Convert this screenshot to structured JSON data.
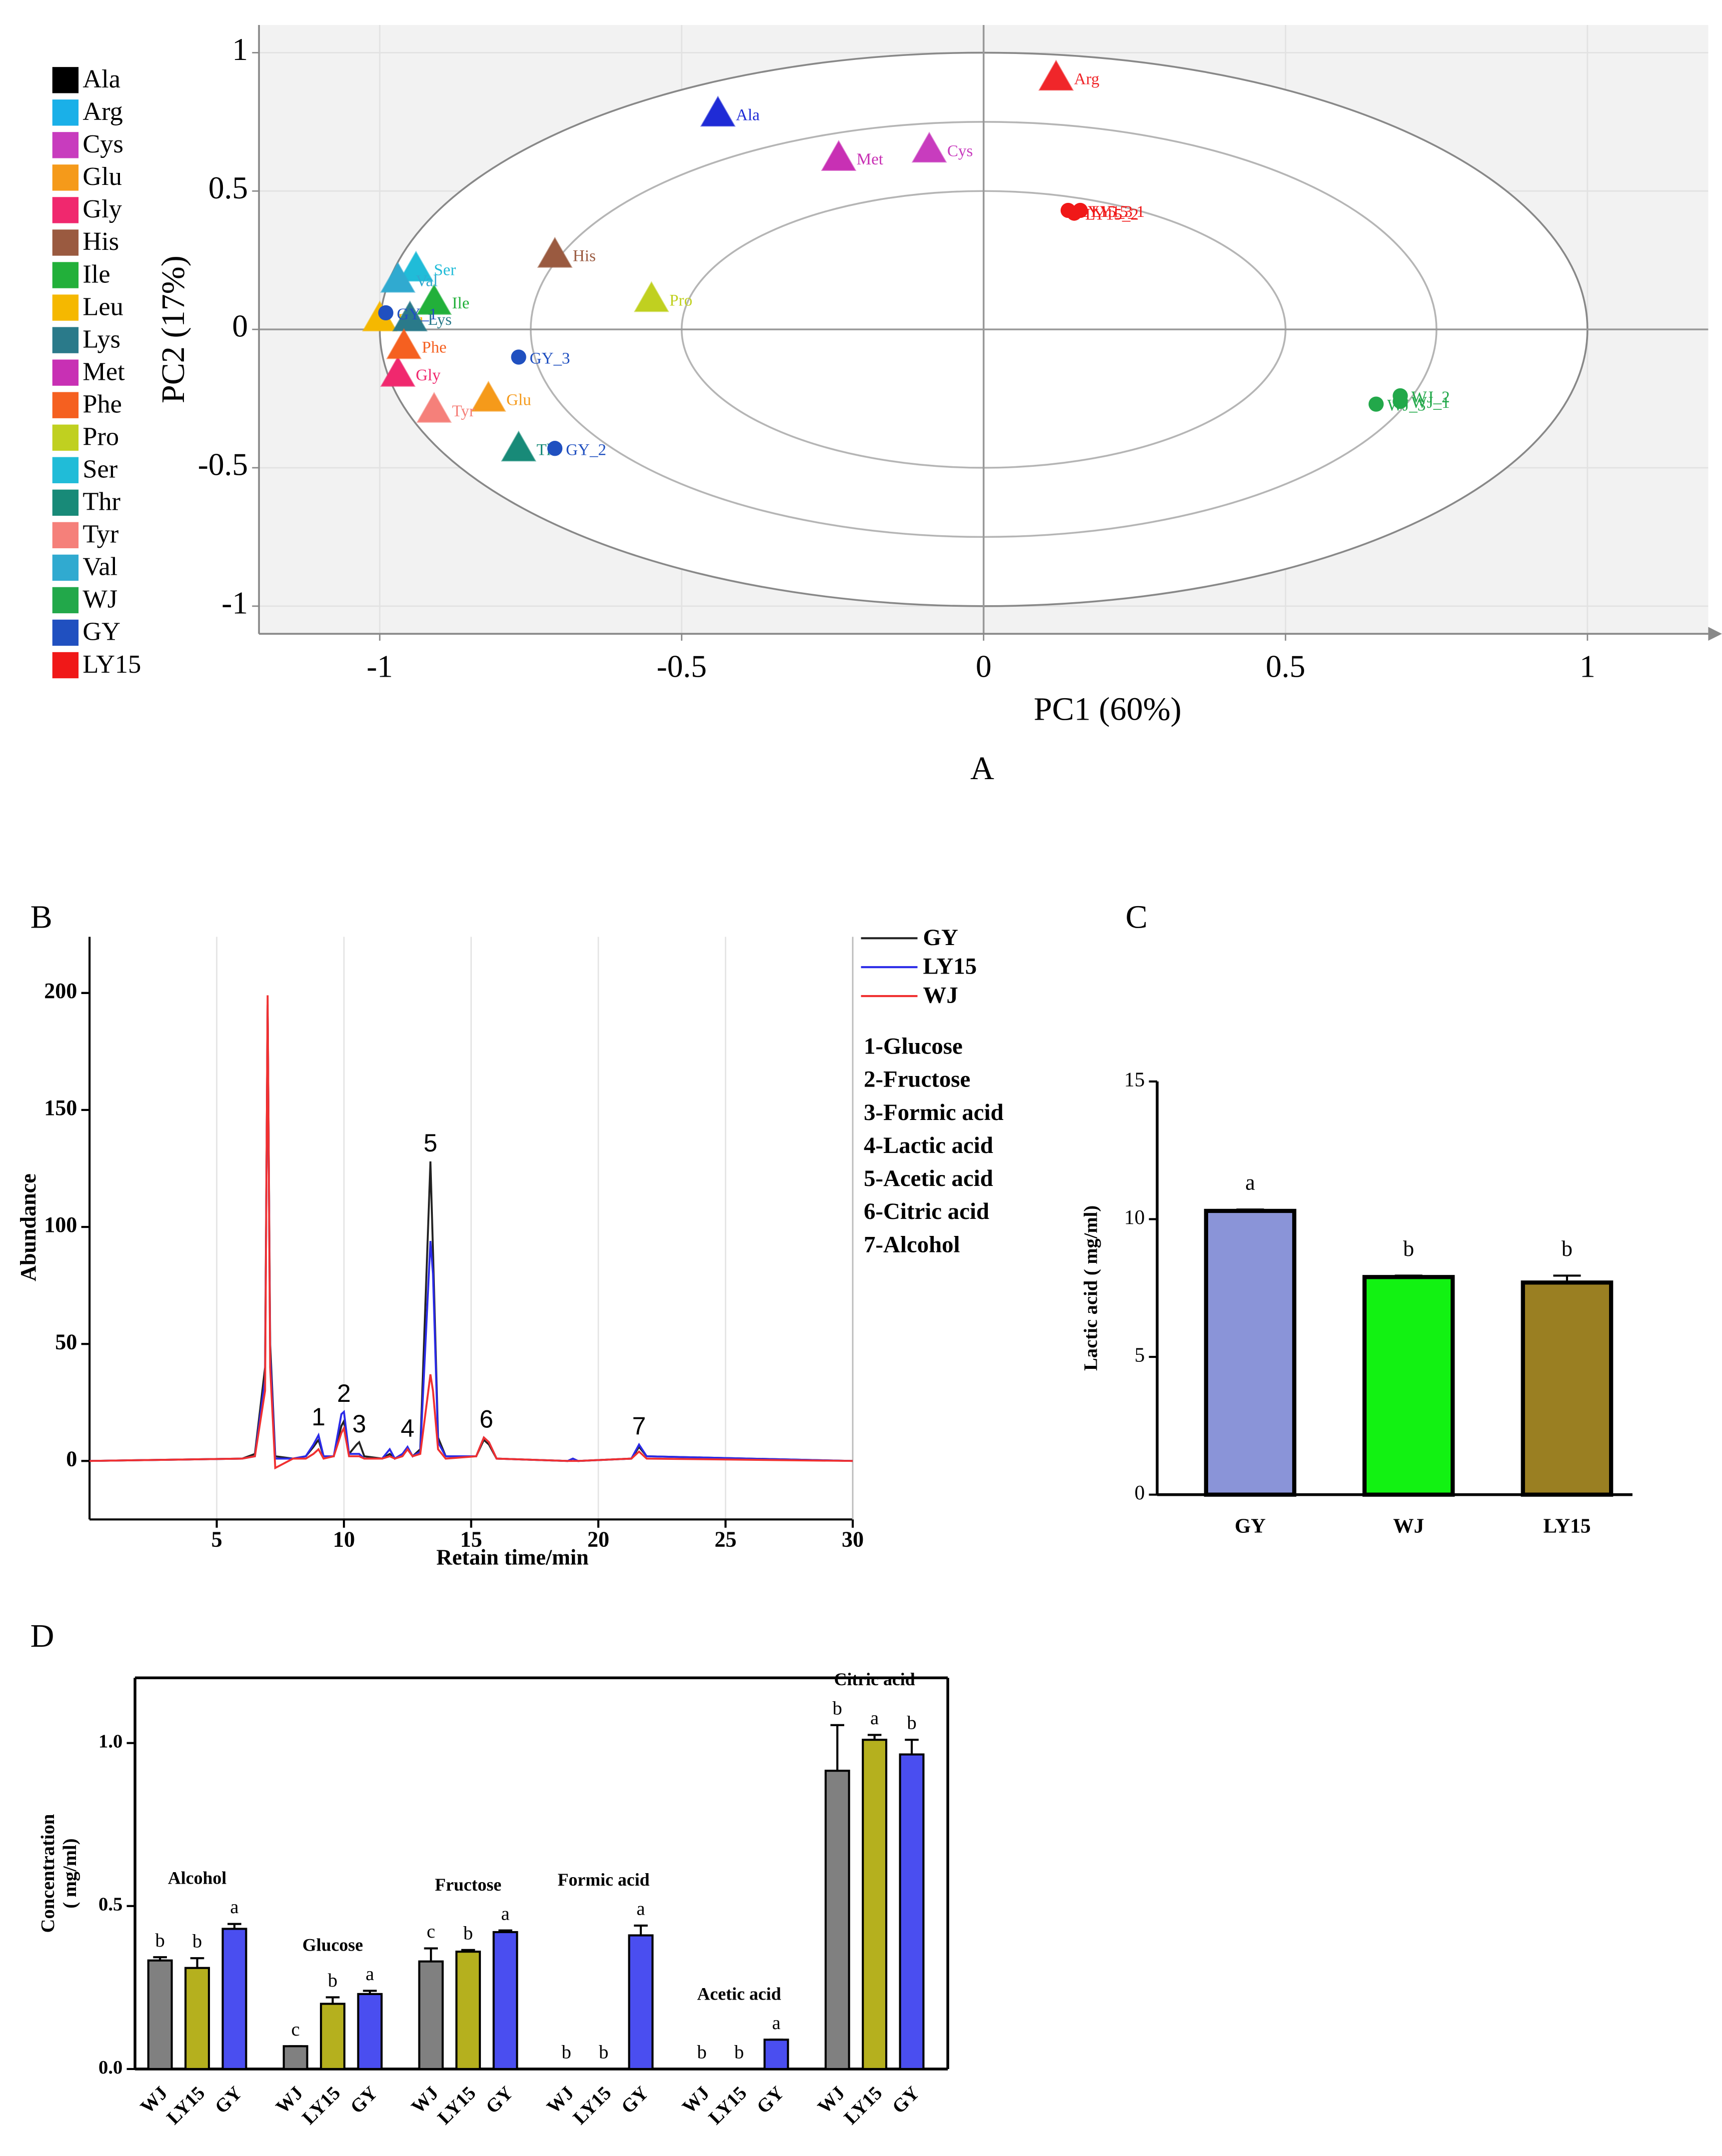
{
  "chart_data": [
    {
      "type": "scatter",
      "caption": "A",
      "xlabel": "PC1 (60%)",
      "ylabel": "PC2 (17%)",
      "xlim": [
        -1.2,
        1.2
      ],
      "ylim": [
        -1.1,
        1.1
      ],
      "xticks": [
        -1,
        -0.5,
        0,
        0.5,
        1
      ],
      "yticks": [
        1,
        0.5,
        0,
        -0.5,
        -1
      ],
      "rings": [
        1,
        0.75,
        0.5
      ],
      "series": [
        {
          "name": "Ala",
          "color": "#000000",
          "point_color": "#1f2bd6",
          "marker": "triangle",
          "x": [
            -0.44
          ],
          "y": [
            0.78
          ],
          "labels": [
            "Ala"
          ]
        },
        {
          "name": "Arg",
          "color": "#1ab0e8",
          "point_color": "#f0262a",
          "marker": "triangle",
          "x": [
            0.12
          ],
          "y": [
            0.91
          ],
          "labels": [
            "Arg"
          ]
        },
        {
          "name": "Cys",
          "color": "#c83cbe",
          "marker": "triangle",
          "x": [
            -0.09
          ],
          "y": [
            0.65
          ],
          "labels": [
            "Cys"
          ]
        },
        {
          "name": "Glu",
          "color": "#f59a1a",
          "marker": "triangle",
          "x": [
            -0.82
          ],
          "y": [
            -0.25
          ],
          "labels": [
            "Glu"
          ]
        },
        {
          "name": "Gly",
          "color": "#f0286e",
          "marker": "triangle",
          "x": [
            -0.97
          ],
          "y": [
            -0.16
          ],
          "labels": [
            "Gly"
          ]
        },
        {
          "name": "His",
          "color": "#9a5a40",
          "marker": "triangle",
          "x": [
            -0.71
          ],
          "y": [
            0.27
          ],
          "labels": [
            "His"
          ]
        },
        {
          "name": "Ile",
          "color": "#22b03a",
          "marker": "triangle",
          "x": [
            -0.91
          ],
          "y": [
            0.1
          ],
          "labels": [
            "Ile"
          ]
        },
        {
          "name": "Leu",
          "color": "#f5b800",
          "marker": "triangle",
          "x": [
            -1.0
          ],
          "y": [
            0.04
          ],
          "labels": [
            "Leu"
          ]
        },
        {
          "name": "Lys",
          "color": "#2a7a8a",
          "marker": "triangle",
          "x": [
            -0.95
          ],
          "y": [
            0.04
          ],
          "labels": [
            "Lys"
          ]
        },
        {
          "name": "Met",
          "color": "#c830b4",
          "marker": "triangle",
          "x": [
            -0.24
          ],
          "y": [
            0.62
          ],
          "labels": [
            "Met"
          ]
        },
        {
          "name": "Phe",
          "color": "#f56020",
          "marker": "triangle",
          "x": [
            -0.96
          ],
          "y": [
            -0.06
          ],
          "labels": [
            "Phe"
          ]
        },
        {
          "name": "Pro",
          "color": "#c0d020",
          "marker": "triangle",
          "x": [
            -0.55
          ],
          "y": [
            0.11
          ],
          "labels": [
            "Pro"
          ]
        },
        {
          "name": "Ser",
          "color": "#20bcd8",
          "marker": "triangle",
          "x": [
            -0.94
          ],
          "y": [
            0.22
          ],
          "labels": [
            "Ser"
          ]
        },
        {
          "name": "Thr",
          "color": "#188a78",
          "marker": "triangle",
          "x": [
            -0.77
          ],
          "y": [
            -0.43
          ],
          "labels": [
            "Thr"
          ]
        },
        {
          "name": "Tyr",
          "color": "#f5807a",
          "marker": "triangle",
          "x": [
            -0.91
          ],
          "y": [
            -0.29
          ],
          "labels": [
            "Tyr"
          ]
        },
        {
          "name": "Val",
          "color": "#30aad0",
          "marker": "triangle",
          "x": [
            -0.97
          ],
          "y": [
            0.18
          ],
          "labels": [
            "Val"
          ]
        },
        {
          "name": "WJ",
          "color": "#22a84a",
          "marker": "circle",
          "x": [
            0.69,
            0.69,
            0.65
          ],
          "y": [
            -0.26,
            -0.24,
            -0.27
          ],
          "labels": [
            "WJ_1",
            "WJ_2",
            "WJ_3"
          ]
        },
        {
          "name": "GY",
          "color": "#2050c0",
          "marker": "circle",
          "x": [
            -0.99,
            -0.71,
            -0.77
          ],
          "y": [
            0.06,
            -0.43,
            -0.1
          ],
          "labels": [
            "GY_1",
            "GY_2",
            "GY_3"
          ]
        },
        {
          "name": "LY15",
          "color": "#f01818",
          "marker": "circle",
          "x": [
            0.16,
            0.15,
            0.14
          ],
          "y": [
            0.43,
            0.42,
            0.43
          ],
          "labels": [
            "LY15_1",
            "LY15_2",
            "LY15_3"
          ]
        }
      ]
    },
    {
      "type": "line",
      "caption": "B",
      "xlabel": "Retain time/min",
      "ylabel": "Abundance",
      "xlim": [
        0,
        30
      ],
      "ylim": [
        -25,
        224
      ],
      "xticks": [
        5,
        10,
        15,
        20,
        25,
        30
      ],
      "yticks": [
        0,
        50,
        100,
        150,
        200
      ],
      "grid": "x",
      "x": [
        0,
        6,
        6.5,
        6.9,
        7.0,
        7.1,
        7.3,
        8.0,
        8.5,
        8.8,
        9.0,
        9.2,
        9.6,
        9.9,
        10.0,
        10.2,
        10.5,
        10.6,
        10.8,
        11.5,
        11.8,
        12.0,
        12.3,
        12.5,
        12.7,
        13.0,
        13.4,
        13.5,
        13.7,
        14.0,
        15.2,
        15.5,
        15.7,
        16.0,
        18.8,
        19.0,
        19.2,
        21.3,
        21.6,
        21.9,
        30
      ],
      "series": [
        {
          "name": "GY",
          "color": "#222222",
          "values": [
            0,
            1,
            3,
            40,
            195,
            50,
            2,
            1,
            2,
            6,
            9,
            2,
            2,
            15,
            17,
            3,
            7,
            8,
            2,
            1,
            3,
            1,
            3,
            5,
            2,
            5,
            128,
            90,
            10,
            2,
            2,
            9,
            7,
            1,
            0,
            1,
            0,
            1,
            6,
            2,
            0
          ]
        },
        {
          "name": "LY15",
          "color": "#2a2ae8",
          "values": [
            0,
            1,
            2,
            35,
            195,
            45,
            1,
            1,
            2,
            7,
            11,
            2,
            2,
            20,
            21,
            3,
            3,
            3,
            1,
            1,
            5,
            1,
            3,
            6,
            2,
            4,
            94,
            80,
            8,
            2,
            2,
            10,
            8,
            1,
            0,
            1,
            0,
            1,
            7,
            2,
            0
          ]
        },
        {
          "name": "WJ",
          "color": "#f03030",
          "values": [
            0,
            1,
            2,
            30,
            199,
            40,
            -3,
            1,
            1,
            3,
            5,
            1,
            2,
            12,
            14,
            2,
            2,
            2,
            1,
            1,
            2,
            1,
            2,
            5,
            2,
            3,
            37,
            30,
            5,
            1,
            2,
            10,
            8,
            1,
            0,
            0,
            0,
            1,
            4,
            1,
            0
          ]
        }
      ],
      "peaks": [
        {
          "label": "1",
          "x": 9.0
        },
        {
          "label": "2",
          "x": 10.0
        },
        {
          "label": "3",
          "x": 10.6
        },
        {
          "label": "4",
          "x": 12.5
        },
        {
          "label": "5",
          "x": 13.4
        },
        {
          "label": "6",
          "x": 15.6
        },
        {
          "label": "7",
          "x": 21.6
        }
      ],
      "compounds": [
        "1-Glucose",
        "2-Fructose",
        "3-Formic acid",
        "4-Lactic acid",
        "5-Acetic acid",
        "6-Citric acid",
        "7-Alcohol"
      ]
    },
    {
      "type": "bar",
      "caption": "C",
      "ylabel": "Lactic acid ( mg/ml)",
      "categories": [
        "GY",
        "WJ",
        "LY15"
      ],
      "values": [
        10.3,
        7.9,
        7.7
      ],
      "errors": [
        0.05,
        0.05,
        0.25
      ],
      "letters": [
        "a",
        "b",
        "b"
      ],
      "colors": [
        "#8a94d8",
        "#12f212",
        "#9a7f22"
      ],
      "ylim": [
        0,
        15
      ],
      "yticks": [
        0,
        5,
        10,
        15
      ]
    },
    {
      "type": "grouped_bar",
      "caption": "D",
      "ylabel": [
        "Concentration",
        "( mg/ml)"
      ],
      "groups": [
        "Alcohol",
        "Glucose",
        "Fructose",
        "Formic acid",
        "Acetic acid",
        "Citric acid"
      ],
      "series": [
        {
          "name": "WJ",
          "color": "#808080",
          "values": [
            0.333,
            0.07,
            0.33,
            0,
            0,
            0.915
          ],
          "errors": [
            0.01,
            0,
            0.04,
            0,
            0,
            0.14
          ],
          "letters": [
            "b",
            "c",
            "c",
            "b",
            "b",
            "b"
          ]
        },
        {
          "name": "LY15",
          "color": "#b5b01e",
          "values": [
            0.31,
            0.2,
            0.36,
            0,
            0,
            1.01
          ],
          "errors": [
            0.03,
            0.02,
            0.005,
            0,
            0,
            0.015
          ],
          "letters": [
            "b",
            "b",
            "b",
            "b",
            "b",
            "a"
          ]
        },
        {
          "name": "GY",
          "color": "#4a4ef0",
          "values": [
            0.43,
            0.23,
            0.42,
            0.41,
            0.09,
            0.965
          ],
          "errors": [
            0.015,
            0.01,
            0.005,
            0.03,
            0,
            0.045
          ],
          "letters": [
            "a",
            "a",
            "a",
            "a",
            "a",
            "b"
          ]
        }
      ],
      "ylim": [
        0,
        1.2
      ],
      "yticks": [
        {
          "value": 0,
          "label": "0.0"
        },
        0.5,
        {
          "value": 1,
          "label": "1.0"
        }
      ]
    }
  ]
}
